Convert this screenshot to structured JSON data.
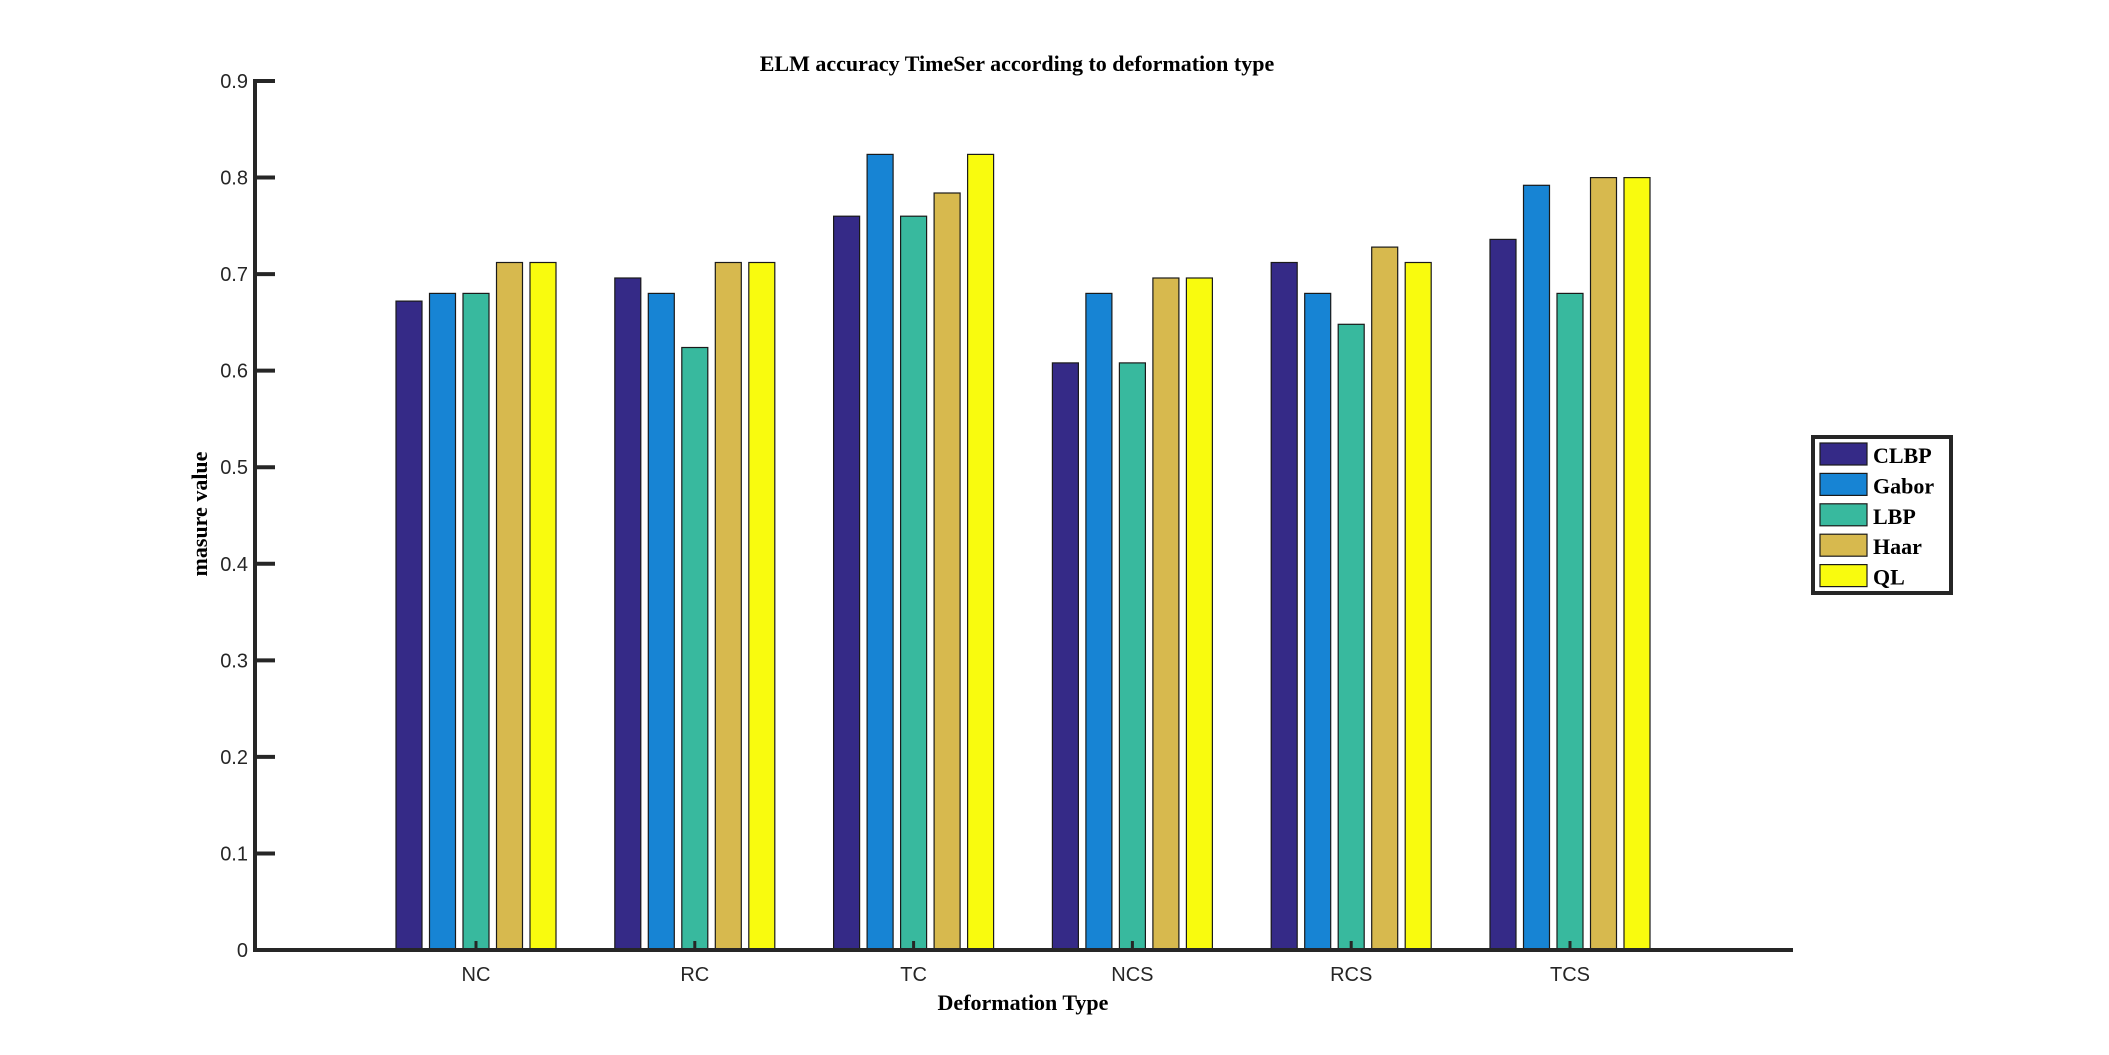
{
  "chart_data": {
    "type": "bar",
    "title": "ELM accuracy TimeSer according to deformation type",
    "xlabel": "Deformation Type",
    "ylabel": "masure value",
    "categories": [
      "NC",
      "RC",
      "TC",
      "NCS",
      "RCS",
      "TCS"
    ],
    "ylim": [
      0,
      0.9
    ],
    "yticks": [
      0,
      0.1,
      0.2,
      0.3,
      0.4,
      0.5,
      0.6,
      0.7,
      0.8,
      0.9
    ],
    "ytick_labels": [
      "0",
      "0.1",
      "0.2",
      "0.3",
      "0.4",
      "0.5",
      "0.6",
      "0.7",
      "0.8",
      "0.9"
    ],
    "grid": false,
    "legend_position": "right",
    "series": [
      {
        "name": "CLBP",
        "color": "#352a87",
        "values": [
          0.672,
          0.696,
          0.76,
          0.608,
          0.712,
          0.736
        ]
      },
      {
        "name": "Gabor",
        "color": "#1784d4",
        "values": [
          0.68,
          0.68,
          0.824,
          0.68,
          0.68,
          0.792
        ]
      },
      {
        "name": "LBP",
        "color": "#38b99e",
        "values": [
          0.68,
          0.624,
          0.76,
          0.608,
          0.648,
          0.68
        ]
      },
      {
        "name": "Haar",
        "color": "#d7b94e",
        "values": [
          0.712,
          0.712,
          0.784,
          0.696,
          0.728,
          0.8
        ]
      },
      {
        "name": "QL",
        "color": "#f9fb0e",
        "values": [
          0.712,
          0.712,
          0.824,
          0.696,
          0.712,
          0.8
        ]
      }
    ]
  }
}
